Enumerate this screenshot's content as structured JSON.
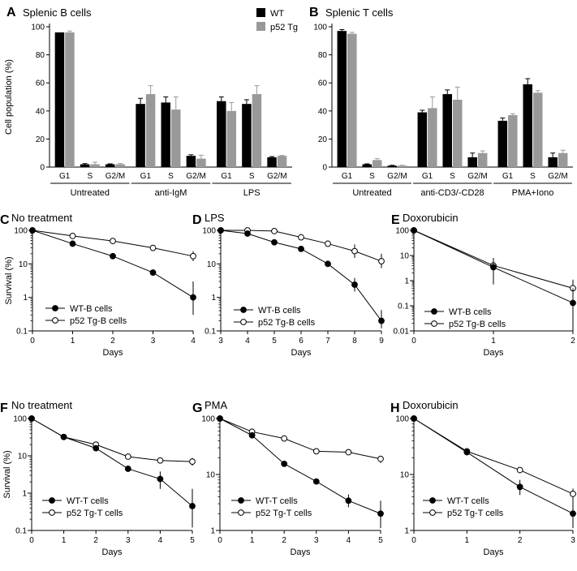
{
  "chart_data": [
    {
      "id": "A",
      "type": "bar",
      "panel_label": "A",
      "title": "Splenic B cells",
      "ylabel": "Cell population (%)",
      "ylim": [
        0,
        100
      ],
      "yticks": [
        0,
        20,
        40,
        60,
        80,
        100
      ],
      "legend": [
        "WT",
        "p52 Tg"
      ],
      "colors": [
        "#000000",
        "#999999"
      ],
      "groups": [
        {
          "name": "Untreated",
          "categories": [
            "G1",
            "S",
            "G2/M"
          ]
        },
        {
          "name": "anti-IgM",
          "categories": [
            "G1",
            "S",
            "G2/M"
          ]
        },
        {
          "name": "LPS",
          "categories": [
            "G1",
            "S",
            "G2/M"
          ]
        }
      ],
      "series": [
        {
          "name": "WT",
          "values": [
            96,
            2,
            2,
            45,
            46,
            8,
            47,
            45,
            7
          ],
          "errors": [
            0,
            0.5,
            0.3,
            4,
            4,
            0.8,
            3,
            3,
            0.5
          ]
        },
        {
          "name": "p52 Tg",
          "values": [
            96,
            2,
            2,
            52,
            41,
            6,
            40,
            52,
            8
          ],
          "errors": [
            1,
            1.5,
            0.5,
            6,
            9,
            2.5,
            6,
            6,
            0.3
          ]
        }
      ]
    },
    {
      "id": "B",
      "type": "bar",
      "panel_label": "B",
      "title": "Splenic T cells",
      "ylabel": "",
      "ylim": [
        0,
        100
      ],
      "yticks": [
        0,
        20,
        40,
        60,
        80,
        100
      ],
      "legend": [],
      "colors": [
        "#000000",
        "#999999"
      ],
      "groups": [
        {
          "name": "Untreated",
          "categories": [
            "G1",
            "S",
            "G2/M"
          ]
        },
        {
          "name": "anti-CD3/-CD28",
          "categories": [
            "G1",
            "S",
            "G2/M"
          ]
        },
        {
          "name": "PMA+Iono",
          "categories": [
            "G1",
            "S",
            "G2/M"
          ]
        }
      ],
      "series": [
        {
          "name": "WT",
          "values": [
            97,
            2,
            1,
            39,
            52,
            7,
            33,
            59,
            7
          ],
          "errors": [
            1,
            0.3,
            0.3,
            1.5,
            3,
            3,
            2,
            4,
            3
          ]
        },
        {
          "name": "p52 Tg",
          "values": [
            95,
            5,
            1,
            42,
            48,
            10,
            37,
            53,
            10
          ],
          "errors": [
            1,
            1,
            0.3,
            8,
            9,
            1.5,
            1,
            1.5,
            2
          ]
        }
      ]
    },
    {
      "id": "C",
      "type": "line",
      "panel_label": "C",
      "title": "No treatment",
      "xlabel": "Days",
      "ylabel": "Survival (%)",
      "yscale": "log",
      "xlim": [
        0,
        4
      ],
      "xticks": [
        0,
        1,
        2,
        3,
        4
      ],
      "ylim": [
        0.1,
        100
      ],
      "yticks": [
        0.1,
        1,
        10,
        100
      ],
      "ytick_labels": [
        "0.1",
        "1",
        "10",
        "100"
      ],
      "series": [
        {
          "name": "WT-B cells",
          "marker": "filled",
          "x": [
            0,
            1,
            2,
            3,
            4
          ],
          "y": [
            100,
            40,
            17,
            5.5,
            1
          ],
          "err": [
            [
              0,
              0
            ],
            [
              0,
              0
            ],
            [
              0,
              0
            ],
            [
              0,
              0
            ],
            [
              0.3,
              3
            ]
          ]
        },
        {
          "name": "p52 Tg-B cells",
          "marker": "open",
          "x": [
            0,
            1,
            2,
            3,
            4
          ],
          "y": [
            100,
            68,
            48,
            30,
            17
          ],
          "err": [
            [
              0,
              0
            ],
            [
              0,
              0
            ],
            [
              0,
              0
            ],
            [
              26,
              34
            ],
            [
              12,
              24
            ]
          ]
        }
      ]
    },
    {
      "id": "D",
      "type": "line",
      "panel_label": "D",
      "title": "LPS",
      "xlabel": "Days",
      "ylabel": "",
      "yscale": "log",
      "xlim": [
        3,
        9
      ],
      "xticks": [
        3,
        4,
        5,
        6,
        7,
        8,
        9
      ],
      "ylim": [
        0.1,
        100
      ],
      "yticks": [
        0.1,
        1,
        10,
        100
      ],
      "ytick_labels": [
        "0.1",
        "1",
        "10",
        "100"
      ],
      "series": [
        {
          "name": "WT-B cells",
          "marker": "filled",
          "x": [
            3,
            4,
            5,
            6,
            7,
            8,
            9
          ],
          "y": [
            100,
            80,
            44,
            28,
            10,
            2.4,
            0.2
          ],
          "err": [
            [
              0,
              0
            ],
            [
              0,
              0
            ],
            [
              0,
              0
            ],
            [
              0,
              0
            ],
            [
              0,
              0
            ],
            [
              1.5,
              3.8
            ],
            [
              0.12,
              0.42
            ]
          ]
        },
        {
          "name": "p52 Tg-B cells",
          "marker": "open",
          "x": [
            3,
            4,
            5,
            6,
            7,
            8,
            9
          ],
          "y": [
            100,
            100,
            95,
            62,
            40,
            24,
            12
          ],
          "err": [
            [
              0,
              0
            ],
            [
              0,
              0
            ],
            [
              0,
              0
            ],
            [
              0,
              0
            ],
            [
              0,
              0
            ],
            [
              15,
              38
            ],
            [
              7.5,
              20
            ]
          ]
        }
      ]
    },
    {
      "id": "E",
      "type": "line",
      "panel_label": "E",
      "title": "Doxorubicin",
      "xlabel": "Days",
      "ylabel": "",
      "yscale": "log",
      "xlim": [
        0,
        2
      ],
      "xticks": [
        0,
        1,
        2
      ],
      "ylim": [
        0.01,
        100
      ],
      "yticks": [
        0.01,
        0.1,
        1,
        10,
        100
      ],
      "ytick_labels": [
        "0.01",
        "0.1",
        "1",
        "10",
        "100"
      ],
      "series": [
        {
          "name": "WT-B cells",
          "marker": "filled",
          "x": [
            0,
            1,
            2
          ],
          "y": [
            100,
            3.4,
            0.13
          ],
          "err": [
            [
              0,
              0
            ],
            [
              0.7,
              8
            ],
            [
              0.01,
              0.5
            ]
          ]
        },
        {
          "name": "p52 Tg-B cells",
          "marker": "open",
          "x": [
            0,
            1,
            2
          ],
          "y": [
            100,
            4,
            0.5
          ],
          "err": [
            [
              0,
              0
            ],
            [
              2.5,
              5.5
            ],
            [
              0.2,
              1.1
            ]
          ]
        }
      ]
    },
    {
      "id": "F",
      "type": "line",
      "panel_label": "F",
      "title": "No treatment",
      "xlabel": "Days",
      "ylabel": "Survival (%)",
      "yscale": "log",
      "xlim": [
        0,
        5
      ],
      "xticks": [
        0,
        1,
        2,
        3,
        4,
        5
      ],
      "ylim": [
        0.1,
        100
      ],
      "yticks": [
        0.1,
        1,
        10,
        100
      ],
      "ytick_labels": [
        "0.1",
        "1",
        "10",
        "100"
      ],
      "series": [
        {
          "name": "WT-T cells",
          "marker": "filled",
          "x": [
            0,
            1,
            2,
            3,
            4,
            5
          ],
          "y": [
            100,
            32,
            16,
            4.5,
            2.4,
            0.45
          ],
          "err": [
            [
              0,
              0
            ],
            [
              0,
              0
            ],
            [
              0,
              0
            ],
            [
              0,
              0
            ],
            [
              1.3,
              3.8
            ],
            [
              0.12,
              1.3
            ]
          ]
        },
        {
          "name": "p52 Tg-T cells",
          "marker": "open",
          "x": [
            0,
            1,
            2,
            3,
            4,
            5
          ],
          "y": [
            100,
            32,
            20,
            9.5,
            7.5,
            7
          ],
          "err": [
            [
              0,
              0
            ],
            [
              0,
              0
            ],
            [
              0,
              0
            ],
            [
              0,
              0
            ],
            [
              0,
              0
            ],
            [
              5.5,
              8.8
            ]
          ]
        }
      ]
    },
    {
      "id": "G",
      "type": "line",
      "panel_label": "G",
      "title": "PMA",
      "xlabel": "Days",
      "ylabel": "",
      "yscale": "log",
      "xlim": [
        0,
        5
      ],
      "xticks": [
        0,
        1,
        2,
        3,
        4,
        5
      ],
      "ylim": [
        1,
        100
      ],
      "yticks": [
        1,
        10,
        100
      ],
      "ytick_labels": [
        "1",
        "10",
        "100"
      ],
      "series": [
        {
          "name": "WT-T cells",
          "marker": "filled",
          "x": [
            0,
            1,
            2,
            3,
            4,
            5
          ],
          "y": [
            100,
            50,
            15.5,
            7.5,
            3.4,
            2
          ],
          "err": [
            [
              0,
              0
            ],
            [
              0,
              0
            ],
            [
              0,
              0
            ],
            [
              0,
              0
            ],
            [
              2.6,
              4.4
            ],
            [
              1.1,
              3.4
            ]
          ]
        },
        {
          "name": "p52 Tg-T cells",
          "marker": "open",
          "x": [
            0,
            1,
            2,
            3,
            4,
            5
          ],
          "y": [
            100,
            58,
            44,
            26,
            25,
            19
          ],
          "err": [
            [
              0,
              0
            ],
            [
              0,
              0
            ],
            [
              0,
              0
            ],
            [
              0,
              0
            ],
            [
              0,
              0
            ],
            [
              16,
              21.5
            ]
          ]
        }
      ]
    },
    {
      "id": "H",
      "type": "line",
      "panel_label": "H",
      "title": "Doxorubicin",
      "xlabel": "Days",
      "ylabel": "",
      "yscale": "log",
      "xlim": [
        0,
        3
      ],
      "xticks": [
        0,
        1,
        2,
        3
      ],
      "ylim": [
        1,
        100
      ],
      "yticks": [
        1,
        10,
        100
      ],
      "ytick_labels": [
        "1",
        "10",
        "100"
      ],
      "series": [
        {
          "name": "WT-T cells",
          "marker": "filled",
          "x": [
            0,
            1,
            2,
            3
          ],
          "y": [
            100,
            25,
            6,
            2
          ],
          "err": [
            [
              0,
              0
            ],
            [
              22,
              28
            ],
            [
              4.3,
              8
            ],
            [
              1.1,
              3.4
            ]
          ]
        },
        {
          "name": "p52 Tg-T cells",
          "marker": "open",
          "x": [
            0,
            1,
            2,
            3
          ],
          "y": [
            100,
            26,
            12,
            4.5
          ],
          "err": [
            [
              0,
              0
            ],
            [
              0,
              0
            ],
            [
              10.5,
              13.5
            ],
            [
              3.4,
              5.6
            ]
          ]
        }
      ]
    }
  ]
}
